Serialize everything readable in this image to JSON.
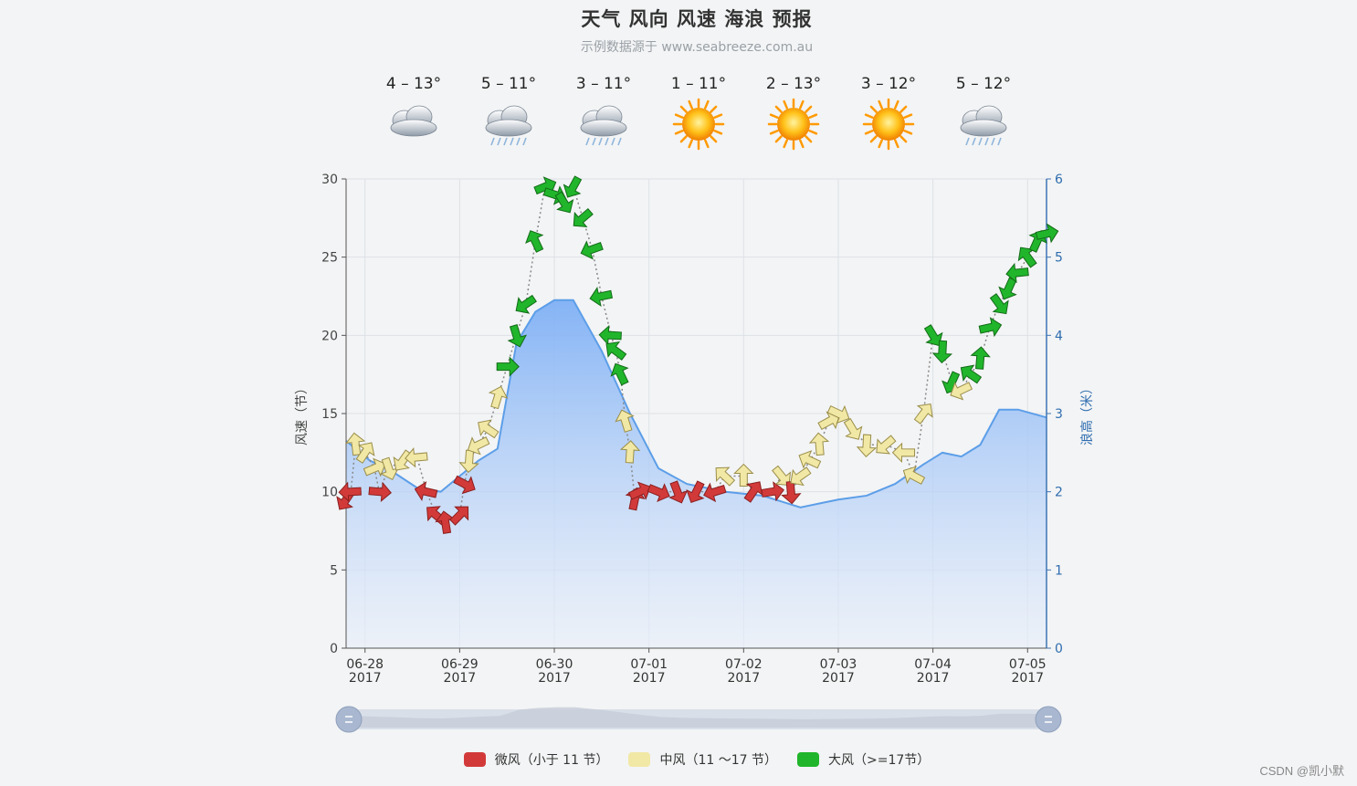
{
  "title": "天气 风向 风速 海浪 预报",
  "subtitle": "示例数据源于 www.seabreeze.com.au",
  "weather": [
    {
      "temp": "4 – 13°",
      "icon": "cloudy-icon"
    },
    {
      "temp": "5 – 11°",
      "icon": "rain-icon"
    },
    {
      "temp": "3 – 11°",
      "icon": "rain-icon"
    },
    {
      "temp": "1 – 11°",
      "icon": "sun-icon"
    },
    {
      "temp": "2 – 13°",
      "icon": "sun-icon"
    },
    {
      "temp": "3 – 12°",
      "icon": "sun-icon"
    },
    {
      "temp": "5 – 12°",
      "icon": "rain-icon"
    }
  ],
  "legend": [
    {
      "label": "微风（小于 11 节）",
      "color": "#d23a3a"
    },
    {
      "label": "中风（11 ～17 节）",
      "color": "#f2e8a6"
    },
    {
      "label": "大风（>=17节）",
      "color": "#21b52b"
    }
  ],
  "watermark": "CSDN @凯小默",
  "chart_data": {
    "type": "line",
    "y_left": {
      "label": "风速（节）",
      "range": [
        0,
        30
      ],
      "ticks": [
        "0",
        "5",
        "10",
        "15",
        "20",
        "25",
        "30"
      ]
    },
    "y_right": {
      "label": "浪高（米）",
      "range": [
        0,
        6
      ],
      "ticks": [
        "0",
        "1",
        "2",
        "3",
        "4",
        "5",
        "6"
      ]
    },
    "x_ticks": [
      {
        "t": 0.2,
        "label": "06-28",
        "year": "2017"
      },
      {
        "t": 1.2,
        "label": "06-29",
        "year": "2017"
      },
      {
        "t": 2.2,
        "label": "06-30",
        "year": "2017"
      },
      {
        "t": 3.2,
        "label": "07-01",
        "year": "2017"
      },
      {
        "t": 4.2,
        "label": "07-02",
        "year": "2017"
      },
      {
        "t": 5.2,
        "label": "07-03",
        "year": "2017"
      },
      {
        "t": 6.2,
        "label": "07-04",
        "year": "2017"
      },
      {
        "t": 7.2,
        "label": "07-05",
        "year": "2017"
      }
    ],
    "x_range": [
      0,
      7.4
    ],
    "grid": true,
    "wave_height": [
      [
        0.0,
        2.65
      ],
      [
        0.25,
        2.4
      ],
      [
        0.5,
        2.25
      ],
      [
        0.75,
        2.05
      ],
      [
        1.0,
        2.0
      ],
      [
        1.2,
        2.2
      ],
      [
        1.4,
        2.4
      ],
      [
        1.6,
        2.55
      ],
      [
        1.8,
        3.9
      ],
      [
        2.0,
        4.3
      ],
      [
        2.2,
        4.45
      ],
      [
        2.4,
        4.45
      ],
      [
        2.7,
        3.8
      ],
      [
        3.0,
        3.0
      ],
      [
        3.3,
        2.3
      ],
      [
        3.6,
        2.1
      ],
      [
        4.0,
        2.0
      ],
      [
        4.4,
        1.95
      ],
      [
        4.8,
        1.8
      ],
      [
        5.0,
        1.85
      ],
      [
        5.2,
        1.9
      ],
      [
        5.5,
        1.95
      ],
      [
        5.8,
        2.1
      ],
      [
        6.1,
        2.35
      ],
      [
        6.3,
        2.5
      ],
      [
        6.5,
        2.45
      ],
      [
        6.7,
        2.6
      ],
      [
        6.9,
        3.05
      ],
      [
        7.1,
        3.05
      ],
      [
        7.4,
        2.95
      ]
    ],
    "wind_speed": [
      [
        0.0,
        9.5
      ],
      [
        0.05,
        10.0
      ],
      [
        0.1,
        13.0
      ],
      [
        0.2,
        12.5
      ],
      [
        0.3,
        11.5
      ],
      [
        0.35,
        10.0
      ],
      [
        0.45,
        11.5
      ],
      [
        0.6,
        12.0
      ],
      [
        0.75,
        12.2
      ],
      [
        0.85,
        10.0
      ],
      [
        0.95,
        8.5
      ],
      [
        1.05,
        8.0
      ],
      [
        1.2,
        8.5
      ],
      [
        1.25,
        10.5
      ],
      [
        1.3,
        12.0
      ],
      [
        1.4,
        13.0
      ],
      [
        1.5,
        14.0
      ],
      [
        1.6,
        16.0
      ],
      [
        1.7,
        18.0
      ],
      [
        1.8,
        20.0
      ],
      [
        1.9,
        22.0
      ],
      [
        2.0,
        26.0
      ],
      [
        2.1,
        29.5
      ],
      [
        2.2,
        29.0
      ],
      [
        2.3,
        28.5
      ],
      [
        2.4,
        29.5
      ],
      [
        2.5,
        27.5
      ],
      [
        2.6,
        25.5
      ],
      [
        2.7,
        22.5
      ],
      [
        2.8,
        20.0
      ],
      [
        2.85,
        19.0
      ],
      [
        2.9,
        17.5
      ],
      [
        2.95,
        14.5
      ],
      [
        3.0,
        12.5
      ],
      [
        3.05,
        9.5
      ],
      [
        3.1,
        10.0
      ],
      [
        3.3,
        10.0
      ],
      [
        3.5,
        10.0
      ],
      [
        3.7,
        10.0
      ],
      [
        3.9,
        10.0
      ],
      [
        4.0,
        11.0
      ],
      [
        4.2,
        11.0
      ],
      [
        4.3,
        10.0
      ],
      [
        4.5,
        10.0
      ],
      [
        4.6,
        11.0
      ],
      [
        4.7,
        10.0
      ],
      [
        4.8,
        11.0
      ],
      [
        4.9,
        12.0
      ],
      [
        5.0,
        13.0
      ],
      [
        5.1,
        14.5
      ],
      [
        5.2,
        15.0
      ],
      [
        5.35,
        14.0
      ],
      [
        5.5,
        13.0
      ],
      [
        5.7,
        13.0
      ],
      [
        5.9,
        12.5
      ],
      [
        6.0,
        11.0
      ],
      [
        6.1,
        15.0
      ],
      [
        6.2,
        20.0
      ],
      [
        6.3,
        19.0
      ],
      [
        6.4,
        17.0
      ],
      [
        6.5,
        16.5
      ],
      [
        6.6,
        17.5
      ],
      [
        6.7,
        18.5
      ],
      [
        6.8,
        20.5
      ],
      [
        6.9,
        22.0
      ],
      [
        7.0,
        23.0
      ],
      [
        7.1,
        24.0
      ],
      [
        7.2,
        25.0
      ],
      [
        7.3,
        26.0
      ],
      [
        7.4,
        26.5
      ]
    ]
  }
}
